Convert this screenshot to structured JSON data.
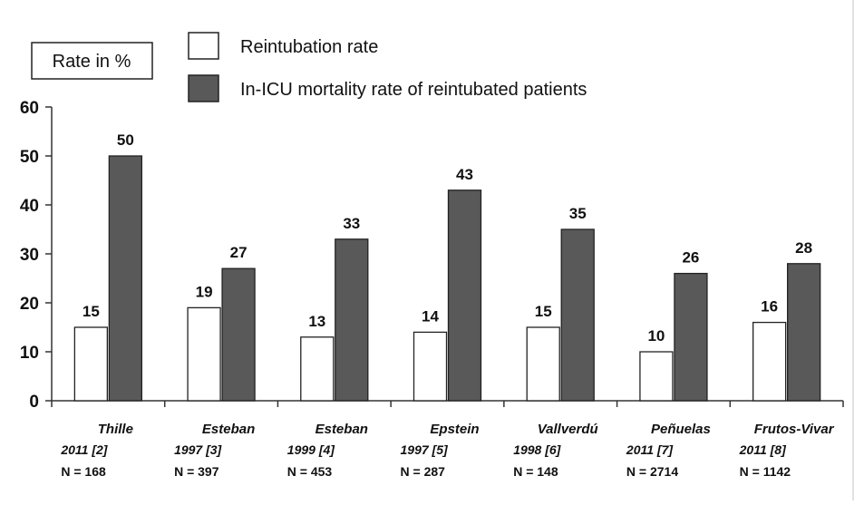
{
  "chart_data": {
    "type": "bar",
    "ylabel": "Rate in %",
    "ylim": [
      0,
      60
    ],
    "yticks": [
      0,
      10,
      20,
      30,
      40,
      50,
      60
    ],
    "grid": false,
    "legend_position": "top",
    "categories": [
      {
        "name": "Thille",
        "year": "2011 [2]",
        "n": "N = 168"
      },
      {
        "name": "Esteban",
        "year": "1997 [3]",
        "n": "N = 397"
      },
      {
        "name": "Esteban",
        "year": "1999 [4]",
        "n": "N = 453"
      },
      {
        "name": "Epstein",
        "year": "1997 [5]",
        "n": "N = 287"
      },
      {
        "name": "Vallverdú",
        "year": "1998 [6]",
        "n": "N = 148"
      },
      {
        "name": "Peñuelas",
        "year": "2011 [7]",
        "n": "N = 2714"
      },
      {
        "name": "Frutos-Vivar",
        "year": "2011 [8]",
        "n": "N = 1142"
      }
    ],
    "series": [
      {
        "name": "Reintubation rate",
        "color": "#ffffff",
        "values": [
          15,
          19,
          13,
          14,
          15,
          10,
          16
        ]
      },
      {
        "name": "In-ICU mortality rate of reintubated patients",
        "color": "#595959",
        "values": [
          50,
          27,
          33,
          43,
          35,
          26,
          28
        ]
      }
    ]
  }
}
